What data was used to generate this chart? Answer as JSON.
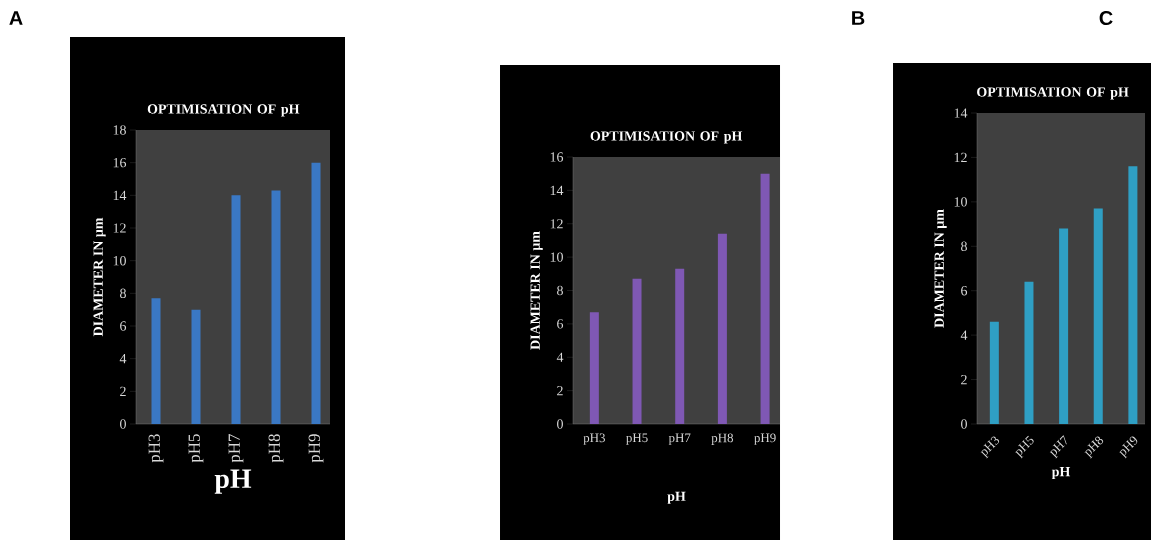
{
  "chart_data": [
    {
      "type": "bar",
      "title": "OPTIMISATION OF pH",
      "xlabel": "pH",
      "ylabel": "DIAMETER IN µm",
      "categories": [
        "pH3",
        "pH5",
        "pH7",
        "pH8",
        "pH9"
      ],
      "values": [
        7.7,
        7.0,
        14.0,
        14.3,
        16.0
      ],
      "color": "#3a78c4",
      "ylim": [
        0,
        18
      ],
      "yticks": [
        0,
        2,
        4,
        6,
        8,
        10,
        12,
        14,
        16,
        18
      ],
      "annotations": [
        "A"
      ]
    },
    {
      "type": "bar",
      "title": "OPTIMISATION OF pH",
      "xlabel": "pH",
      "ylabel": "DIAMETER IN µm",
      "categories": [
        "pH3",
        "pH5",
        "pH7",
        "pH8",
        "pH9"
      ],
      "values": [
        6.7,
        8.7,
        9.3,
        11.4,
        15.0
      ],
      "color": "#7f58b4",
      "ylim": [
        0,
        16
      ],
      "yticks": [
        0,
        2,
        4,
        6,
        8,
        10,
        12,
        14,
        16
      ],
      "annotations": [
        "B"
      ]
    },
    {
      "type": "bar",
      "title": "OPTIMISATION OF pH",
      "xlabel": "pH",
      "ylabel": "DIAMETER IN µm",
      "categories": [
        "pH3",
        "pH5",
        "pH7",
        "pH8",
        "pH9"
      ],
      "values": [
        4.6,
        6.4,
        8.8,
        9.7,
        11.6
      ],
      "color": "#2f9fc4",
      "ylim": [
        0,
        14
      ],
      "yticks": [
        0,
        2,
        4,
        6,
        8,
        10,
        12,
        14
      ],
      "annotations": [
        "C"
      ]
    }
  ]
}
